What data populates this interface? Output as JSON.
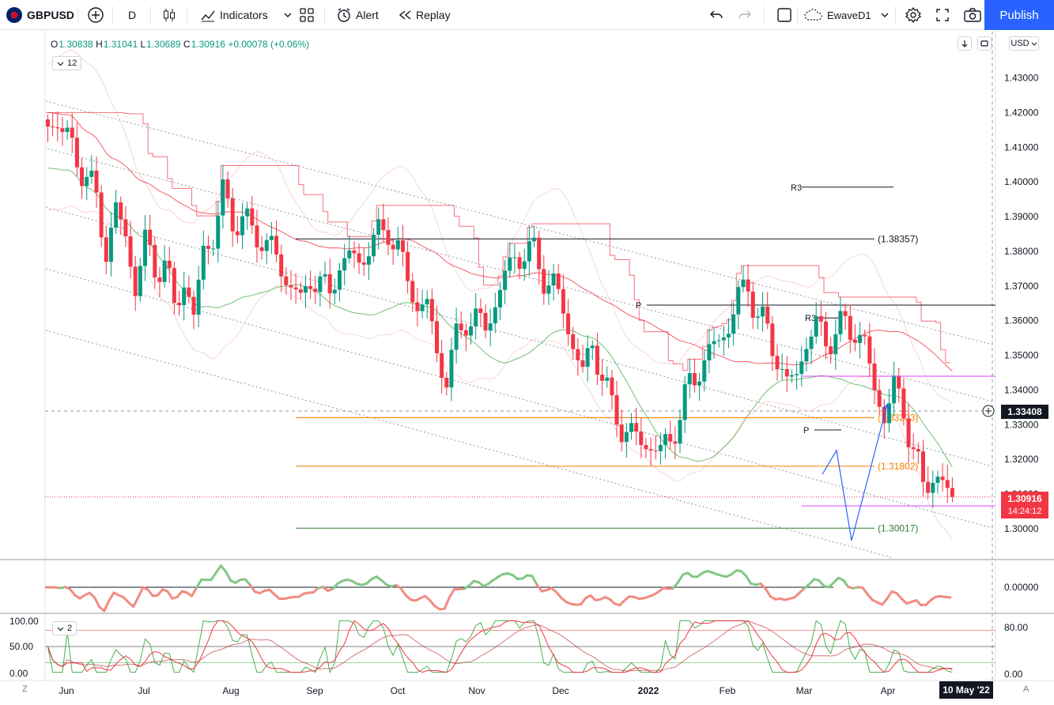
{
  "toolbar": {
    "symbol": "GBPUSD",
    "interval": "D",
    "indicators_label": "Indicators",
    "alert_label": "Alert",
    "replay_label": "Replay",
    "layout_name": "EwaveD1",
    "publish_label": "Publish",
    "icons": [
      "flag-icon",
      "add-symbol-icon",
      "candles-icon",
      "indicators-icon",
      "templates-icon",
      "alert-icon",
      "replay-icon",
      "undo-icon",
      "redo-icon",
      "layout-icon",
      "cloud-icon",
      "settings-icon",
      "fullscreen-icon",
      "camera-icon"
    ]
  },
  "legend": {
    "open_label": "O",
    "open": "1.30838",
    "high_label": "H",
    "high": "1.31041",
    "low_label": "L",
    "low": "1.30689",
    "close_label": "C",
    "close": "1.30916",
    "change": "+0.00078 (+0.06%)",
    "interval_pill": "12",
    "indicator_pill": "2"
  },
  "price_axis": {
    "currency": "USD",
    "current_price": "1.30916",
    "countdown": "14:24:12",
    "crosshair_price": "1.33408",
    "osc_ticks": [
      "0.00000"
    ],
    "stoch_ticks_right": [
      "80.00",
      "0.00"
    ],
    "stoch_ticks_left": [
      "100.00",
      "50.00",
      "0.00"
    ]
  },
  "time_axis": {
    "crosshair_date": "10 May '22",
    "left_corner": "Z",
    "right_corner": "A"
  },
  "colors": {
    "up": "#089981",
    "down": "#f23645",
    "accent": "#2962ff",
    "orange": "#f57c00",
    "magenta": "#e040fb",
    "bands": "#f7b9bd"
  },
  "chart_data": {
    "type": "candlestick",
    "symbol": "GBPUSD",
    "timeframe": "D",
    "ylim": [
      1.295,
      1.435
    ],
    "yticks": [
      1.3,
      1.31,
      1.32,
      1.33,
      1.34,
      1.35,
      1.36,
      1.37,
      1.38,
      1.39,
      1.4,
      1.41,
      1.42,
      1.43
    ],
    "ytick_labels": [
      "1.30000",
      "1.31000",
      "1.32000",
      "1.33000",
      "1.34000",
      "1.35000",
      "1.36000",
      "1.37000",
      "1.38000",
      "1.39000",
      "1.40000",
      "1.41000",
      "1.42000",
      "1.43000"
    ],
    "xlabels": [
      "Jun",
      "Jul",
      "Aug",
      "Sep",
      "Oct",
      "Nov",
      "Dec",
      "2022",
      "Feb",
      "Mar",
      "Apr"
    ],
    "close_path": [
      [
        0,
        1.416
      ],
      [
        6,
        1.418
      ],
      [
        12,
        1.412
      ],
      [
        18,
        1.407
      ],
      [
        24,
        1.401
      ],
      [
        30,
        1.395
      ],
      [
        36,
        1.38
      ],
      [
        42,
        1.392
      ],
      [
        48,
        1.384
      ],
      [
        54,
        1.37
      ],
      [
        60,
        1.382
      ],
      [
        66,
        1.376
      ],
      [
        72,
        1.376
      ],
      [
        78,
        1.364
      ],
      [
        84,
        1.372
      ],
      [
        90,
        1.36
      ],
      [
        96,
        1.381
      ],
      [
        102,
        1.384
      ],
      [
        108,
        1.396
      ],
      [
        114,
        1.39
      ],
      [
        120,
        1.388
      ],
      [
        126,
        1.387
      ],
      [
        132,
        1.382
      ],
      [
        138,
        1.383
      ],
      [
        144,
        1.372
      ],
      [
        150,
        1.373
      ],
      [
        156,
        1.363
      ],
      [
        162,
        1.374
      ],
      [
        168,
        1.37
      ],
      [
        174,
        1.368
      ],
      [
        180,
        1.376
      ],
      [
        186,
        1.379
      ],
      [
        192,
        1.376
      ],
      [
        198,
        1.382
      ],
      [
        204,
        1.384
      ],
      [
        210,
        1.387
      ],
      [
        216,
        1.38
      ],
      [
        222,
        1.372
      ],
      [
        228,
        1.364
      ],
      [
        234,
        1.365
      ],
      [
        240,
        1.35
      ],
      [
        246,
        1.344
      ],
      [
        252,
        1.354
      ],
      [
        258,
        1.361
      ],
      [
        264,
        1.36
      ],
      [
        270,
        1.358
      ],
      [
        276,
        1.365
      ],
      [
        282,
        1.373
      ],
      [
        288,
        1.378
      ],
      [
        294,
        1.38
      ],
      [
        300,
        1.379
      ],
      [
        306,
        1.373
      ],
      [
        312,
        1.37
      ],
      [
        318,
        1.363
      ],
      [
        324,
        1.353
      ],
      [
        330,
        1.345
      ],
      [
        336,
        1.353
      ],
      [
        342,
        1.345
      ],
      [
        348,
        1.334
      ],
      [
        354,
        1.33
      ],
      [
        360,
        1.327
      ],
      [
        366,
        1.325
      ],
      [
        372,
        1.324
      ],
      [
        378,
        1.322
      ],
      [
        384,
        1.326
      ],
      [
        390,
        1.333
      ],
      [
        396,
        1.341
      ],
      [
        402,
        1.347
      ],
      [
        408,
        1.35
      ],
      [
        414,
        1.355
      ],
      [
        420,
        1.358
      ],
      [
        426,
        1.367
      ],
      [
        432,
        1.37
      ],
      [
        438,
        1.362
      ],
      [
        444,
        1.356
      ],
      [
        450,
        1.35
      ],
      [
        456,
        1.341
      ],
      [
        462,
        1.345
      ],
      [
        468,
        1.354
      ],
      [
        474,
        1.358
      ],
      [
        480,
        1.355
      ],
      [
        486,
        1.356
      ],
      [
        492,
        1.359
      ],
      [
        498,
        1.357
      ],
      [
        504,
        1.353
      ],
      [
        510,
        1.34
      ],
      [
        516,
        1.333
      ],
      [
        522,
        1.34
      ],
      [
        528,
        1.335
      ],
      [
        534,
        1.322
      ],
      [
        540,
        1.312
      ],
      [
        546,
        1.316
      ],
      [
        552,
        1.312
      ],
      [
        558,
        1.3092
      ]
    ],
    "levels": [
      {
        "label": "(1.38357)",
        "value": 1.38357,
        "color": "#131722"
      },
      {
        "label": "(1.33203)",
        "value": 1.33203,
        "color": "#f57c00"
      },
      {
        "label": "(1.31802)",
        "value": 1.31802,
        "color": "#f57c00"
      },
      {
        "label": "(1.30017)",
        "value": 1.30017,
        "color": "#2e7d32"
      },
      {
        "label": "R3",
        "value": 1.3985,
        "color": "#131722"
      },
      {
        "label": "R3",
        "value": 1.3608,
        "color": "#131722"
      },
      {
        "label": "P",
        "value": 1.3645,
        "color": "#131722"
      },
      {
        "label": "P",
        "value": 1.3285,
        "color": "#131722"
      }
    ],
    "projection": [
      [
        1.305,
        1.3225
      ],
      [
        1.3225,
        1.297
      ],
      [
        1.297,
        1.336
      ]
    ],
    "stochastic": {
      "upper": 80,
      "lower": 20,
      "max": 100
    }
  }
}
